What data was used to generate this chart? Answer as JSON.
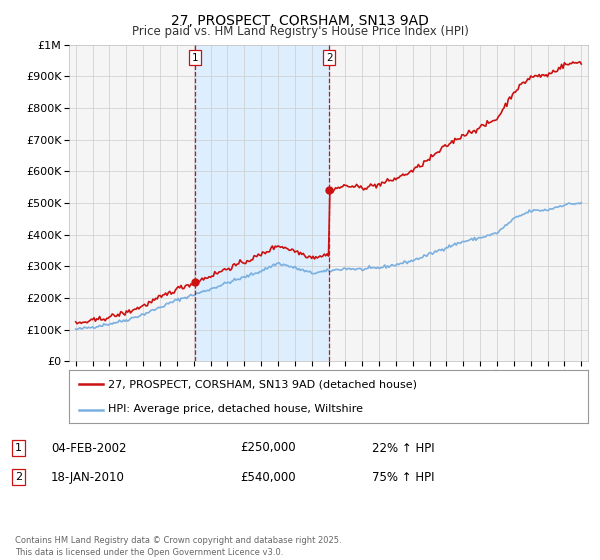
{
  "title": "27, PROSPECT, CORSHAM, SN13 9AD",
  "subtitle": "Price paid vs. HM Land Registry's House Price Index (HPI)",
  "legend_line1": "27, PROSPECT, CORSHAM, SN13 9AD (detached house)",
  "legend_line2": "HPI: Average price, detached house, Wiltshire",
  "footnote": "Contains HM Land Registry data © Crown copyright and database right 2025.\nThis data is licensed under the Open Government Licence v3.0.",
  "sale1_date": "04-FEB-2002",
  "sale1_price": 250000,
  "sale1_hpi": "22% ↑ HPI",
  "sale2_date": "18-JAN-2010",
  "sale2_price": 540000,
  "sale2_hpi": "75% ↑ HPI",
  "sale1_x": 2002.09,
  "sale2_x": 2010.05,
  "hpi_color": "#7ab0e0",
  "price_color": "#cc1111",
  "vline_color": "#cc1111",
  "shade_color": "#ddeeff",
  "ylim": [
    0,
    1000000
  ],
  "xlim": [
    1994.6,
    2025.4
  ],
  "background_color": "#ffffff",
  "plot_bg_color": "#f5f5f5"
}
